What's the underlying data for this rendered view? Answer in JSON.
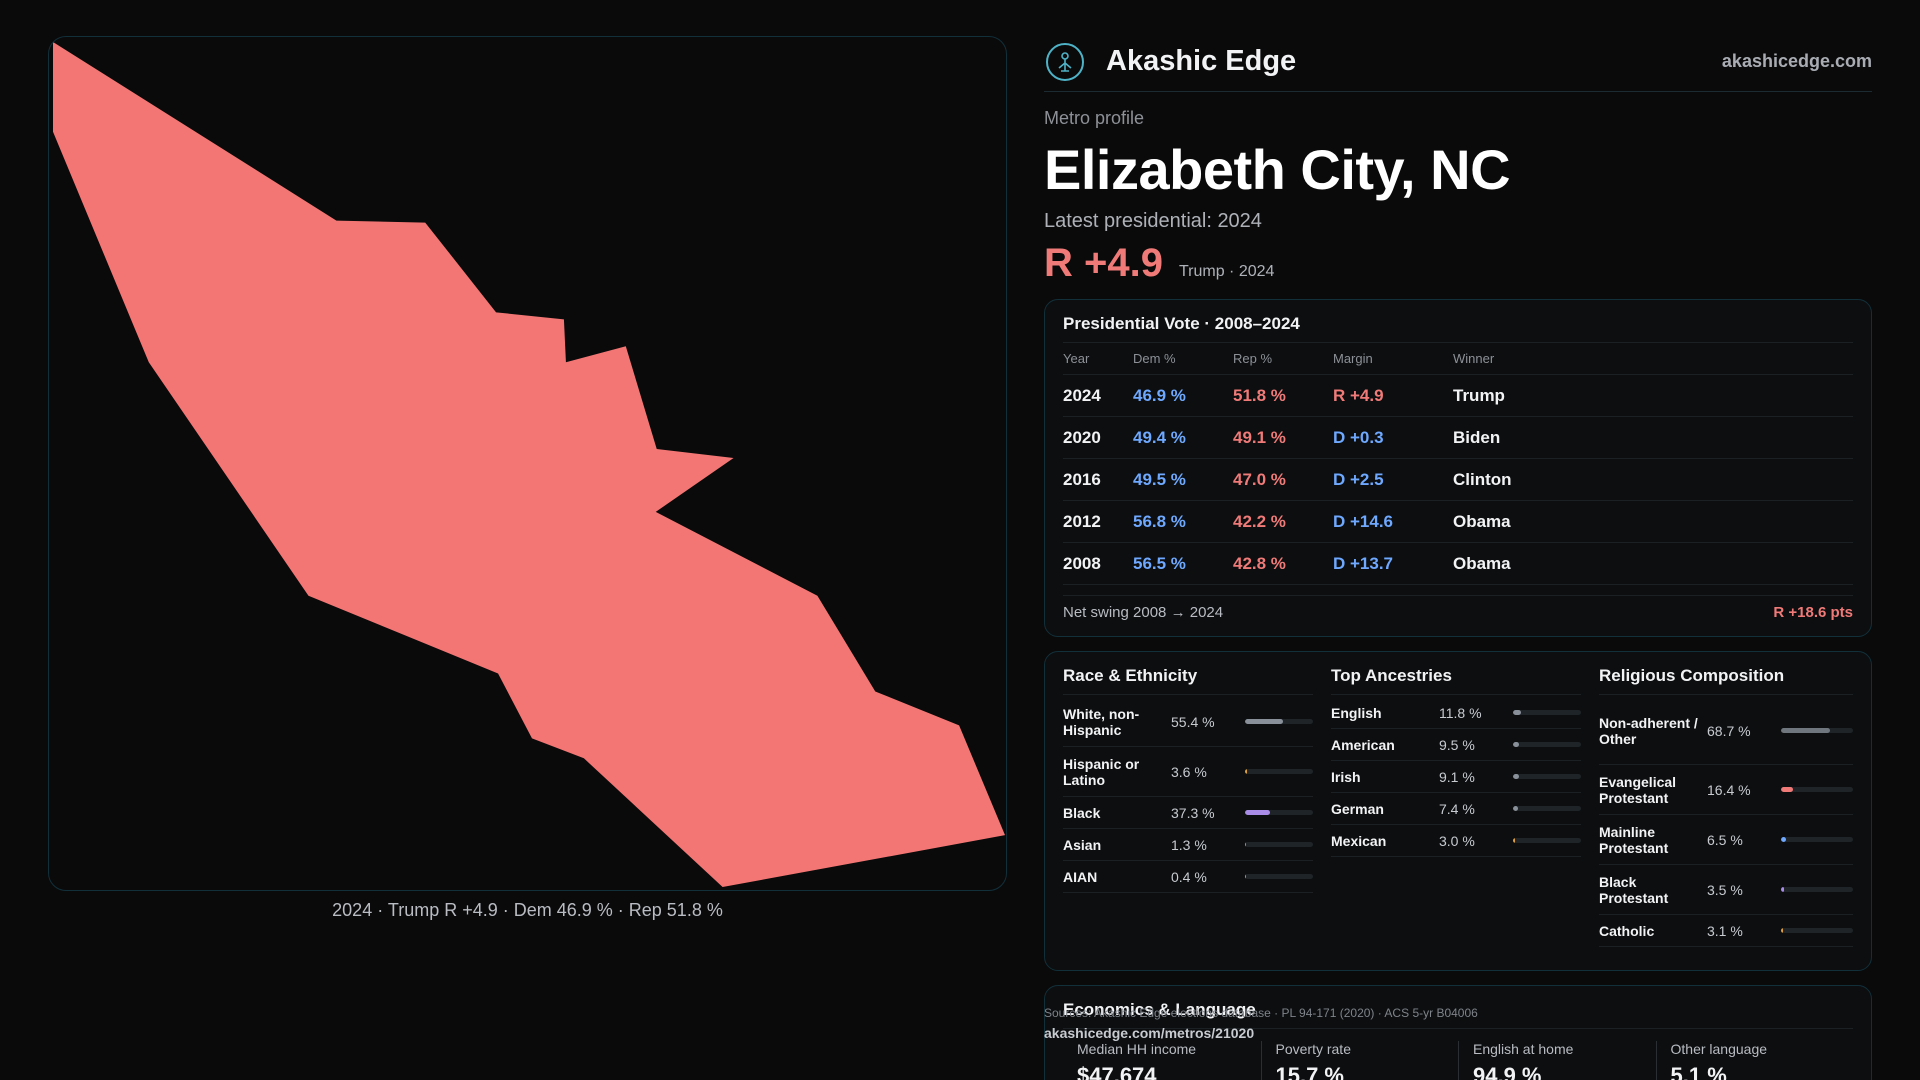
{
  "brand": {
    "name": "Akashic Edge",
    "url": "akashicedge.com",
    "logo_icon": "tree-of-life-icon"
  },
  "profile": {
    "eyebrow": "Metro profile",
    "city": "Elizabeth City, NC",
    "latest_label": "Latest presidential: 2024",
    "headline_margin": "R +4.9",
    "headline_sub": "Trump · 2024"
  },
  "map": {
    "caption": "2024 · Trump R +4.9 · Dem 46.9 % · Rep 51.8 %",
    "fill_color": "#f47674"
  },
  "vote": {
    "title": "Presidential Vote · 2008–2024",
    "headers": [
      "Year",
      "Dem %",
      "Rep %",
      "Margin",
      "Winner"
    ],
    "rows": [
      {
        "year": "2024",
        "dem": "46.9 %",
        "rep": "51.8 %",
        "margin": "R +4.9",
        "winner": "Trump",
        "party": "R"
      },
      {
        "year": "2020",
        "dem": "49.4 %",
        "rep": "49.1 %",
        "margin": "D +0.3",
        "winner": "Biden",
        "party": "D"
      },
      {
        "year": "2016",
        "dem": "49.5 %",
        "rep": "47.0 %",
        "margin": "D +2.5",
        "winner": "Clinton",
        "party": "D"
      },
      {
        "year": "2012",
        "dem": "56.8 %",
        "rep": "42.2 %",
        "margin": "D +14.6",
        "winner": "Obama",
        "party": "D"
      },
      {
        "year": "2008",
        "dem": "56.5 %",
        "rep": "42.8 %",
        "margin": "D +13.7",
        "winner": "Obama",
        "party": "D"
      }
    ],
    "swing_label": "Net swing 2008 → 2024",
    "swing_value": "R +18.6 pts"
  },
  "race": {
    "title": "Race & Ethnicity",
    "items": [
      {
        "label": "White, non-Hispanic",
        "pct": "55.4 %",
        "value": 55.4,
        "color": "#8a9099"
      },
      {
        "label": "Hispanic or Latino",
        "pct": "3.6 %",
        "value": 3.6,
        "color": "#e0a040"
      },
      {
        "label": "Black",
        "pct": "37.3 %",
        "value": 37.3,
        "color": "#a98be8"
      },
      {
        "label": "Asian",
        "pct": "1.3 %",
        "value": 1.3,
        "color": "#4fb3a0"
      },
      {
        "label": "AIAN",
        "pct": "0.4 %",
        "value": 0.4,
        "color": "#c98b5a"
      }
    ]
  },
  "ancestry": {
    "title": "Top Ancestries",
    "items": [
      {
        "label": "English",
        "pct": "11.8 %",
        "value": 11.8,
        "color": "#8a9099"
      },
      {
        "label": "American",
        "pct": "9.5 %",
        "value": 9.5,
        "color": "#8a9099"
      },
      {
        "label": "Irish",
        "pct": "9.1 %",
        "value": 9.1,
        "color": "#8a9099"
      },
      {
        "label": "German",
        "pct": "7.4 %",
        "value": 7.4,
        "color": "#8a9099"
      },
      {
        "label": "Mexican",
        "pct": "3.0 %",
        "value": 3.0,
        "color": "#e0a040"
      }
    ]
  },
  "religion": {
    "title": "Religious Composition",
    "items": [
      {
        "label": "Non-adherent / Other",
        "pct": "68.7 %",
        "value": 68.7,
        "color": "#6f767e"
      },
      {
        "label": "Evangelical Protestant",
        "pct": "16.4 %",
        "value": 16.4,
        "color": "#f07a78"
      },
      {
        "label": "Mainline Protestant",
        "pct": "6.5 %",
        "value": 6.5,
        "color": "#6ea8ff"
      },
      {
        "label": "Black Protestant",
        "pct": "3.5 %",
        "value": 3.5,
        "color": "#a98be8"
      },
      {
        "label": "Catholic",
        "pct": "3.1 %",
        "value": 3.1,
        "color": "#e0a040"
      }
    ]
  },
  "economics": {
    "title": "Economics & Language",
    "cells": [
      {
        "label": "Median HH income",
        "value": "$47,674"
      },
      {
        "label": "Poverty rate",
        "value": "15.7 %"
      },
      {
        "label": "English at home",
        "value": "94.9 %"
      },
      {
        "label": "Other language",
        "value": "5.1 %"
      }
    ]
  },
  "footer": {
    "sources": "Sources: Akashic Edge elections database · PL 94-171 (2020) · ACS 5-yr B04006",
    "permalink": "akashicedge.com/metros/21020"
  }
}
